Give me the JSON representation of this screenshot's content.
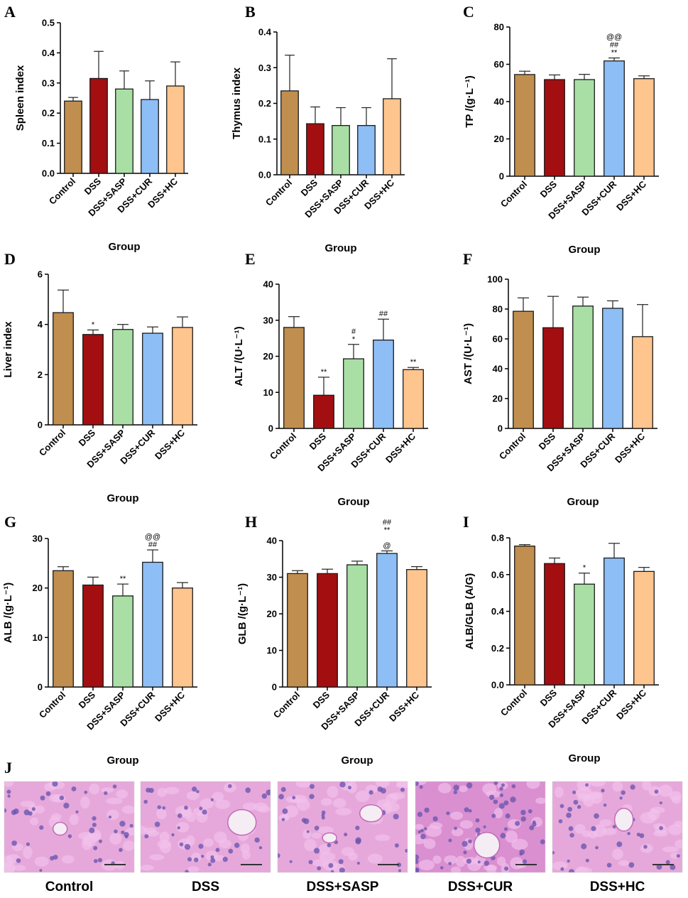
{
  "colors": {
    "Control": "#C08E4E",
    "DSS": "#A30E10",
    "DSS+SASP": "#A9DFA5",
    "DSS+CUR": "#8EBEF6",
    "DSS+HC": "#FFC58E",
    "tissue_bg": "#E6A8DA",
    "tissue_cell": "#F3C2EC",
    "nucleus": "#6B56B0",
    "vessel": "#F4EEF4"
  },
  "chart_data": [
    {
      "id": "A",
      "panel_label": "A",
      "type": "bar",
      "categories": [
        "Control",
        "DSS",
        "DSS+SASP",
        "DSS+CUR",
        "DSS+HC"
      ],
      "values": [
        0.24,
        0.315,
        0.28,
        0.245,
        0.29
      ],
      "errors": [
        0.012,
        0.09,
        0.06,
        0.062,
        0.08
      ],
      "significance": [
        "",
        "",
        "",
        "",
        ""
      ],
      "ylabel": "Spleen index",
      "xlabel": "Group",
      "ylim": [
        0,
        0.5
      ],
      "yticks": [
        "0.0",
        "0.1",
        "0.2",
        "0.3",
        "0.4",
        "0.5"
      ],
      "ytick_values": [
        0,
        0.1,
        0.2,
        0.3,
        0.4,
        0.5
      ]
    },
    {
      "id": "B",
      "panel_label": "B",
      "type": "bar",
      "categories": [
        "Control",
        "DSS",
        "DSS+SASP",
        "DSS+CUR",
        "DSS+HC"
      ],
      "values": [
        0.235,
        0.143,
        0.138,
        0.138,
        0.213
      ],
      "errors": [
        0.1,
        0.047,
        0.05,
        0.05,
        0.112
      ],
      "significance": [
        "",
        "",
        "",
        "",
        ""
      ],
      "ylabel": "Thymus index",
      "xlabel": "Group",
      "ylim": [
        0,
        0.4
      ],
      "yticks": [
        "0.0",
        "0.1",
        "0.2",
        "0.3",
        "0.4"
      ],
      "ytick_values": [
        0,
        0.1,
        0.2,
        0.3,
        0.4
      ]
    },
    {
      "id": "C",
      "panel_label": "C",
      "type": "bar",
      "categories": [
        "Control",
        "DSS",
        "DSS+SASP",
        "DSS+CUR",
        "DSS+HC"
      ],
      "values": [
        54.5,
        51.8,
        51.8,
        61.8,
        52.3
      ],
      "errors": [
        1.8,
        2.5,
        2.8,
        1.6,
        1.5
      ],
      "significance": [
        "",
        "",
        "",
        "@@\n##\n**",
        ""
      ],
      "ylabel": "TP /(g·L⁻¹)",
      "xlabel": "Group",
      "ylim": [
        0,
        80
      ],
      "yticks": [
        "0",
        "20",
        "40",
        "60",
        "80"
      ],
      "ytick_values": [
        0,
        20,
        40,
        60,
        80
      ]
    },
    {
      "id": "D",
      "panel_label": "D",
      "type": "bar",
      "categories": [
        "Control",
        "DSS",
        "DSS+SASP",
        "DSS+CUR",
        "DSS+HC"
      ],
      "values": [
        4.47,
        3.6,
        3.8,
        3.65,
        3.88
      ],
      "errors": [
        0.9,
        0.18,
        0.2,
        0.25,
        0.42
      ],
      "significance": [
        "",
        "*",
        "",
        "",
        ""
      ],
      "ylabel": "Liver index",
      "xlabel": "Group",
      "ylim": [
        0,
        6
      ],
      "yticks": [
        "0",
        "2",
        "4",
        "6"
      ],
      "ytick_values": [
        0,
        2,
        4,
        6
      ]
    },
    {
      "id": "E",
      "panel_label": "E",
      "type": "bar",
      "categories": [
        "Control",
        "DSS",
        "DSS+SASP",
        "DSS+CUR",
        "DSS+HC"
      ],
      "values": [
        28,
        9.2,
        19.3,
        24.5,
        16.3
      ],
      "errors": [
        3,
        5,
        4,
        5.8,
        0.6
      ],
      "significance": [
        "",
        "**",
        "#\n*",
        "##",
        "**"
      ],
      "ylabel": "ALT /(U·L⁻¹)",
      "xlabel": "Group",
      "ylim": [
        0,
        40
      ],
      "yticks": [
        "0",
        "10",
        "20",
        "30",
        "40"
      ],
      "ytick_values": [
        0,
        10,
        20,
        30,
        40
      ]
    },
    {
      "id": "F",
      "panel_label": "F",
      "type": "bar",
      "categories": [
        "Control",
        "DSS",
        "DSS+SASP",
        "DSS+CUR",
        "DSS+HC"
      ],
      "values": [
        78.5,
        67.5,
        82,
        80.5,
        61.5
      ],
      "errors": [
        9,
        21,
        6,
        5,
        21.5
      ],
      "significance": [
        "",
        "",
        "",
        "",
        ""
      ],
      "ylabel": "AST /(U·L⁻¹)",
      "xlabel": "Group",
      "ylim": [
        0,
        100
      ],
      "yticks": [
        "0",
        "20",
        "40",
        "60",
        "80",
        "100"
      ],
      "ytick_values": [
        0,
        20,
        40,
        60,
        80,
        100
      ]
    },
    {
      "id": "G",
      "panel_label": "G",
      "type": "bar",
      "categories": [
        "Control",
        "DSS",
        "DSS+SASP",
        "DSS+CUR",
        "DSS+HC"
      ],
      "values": [
        23.5,
        20.6,
        18.4,
        25.2,
        20
      ],
      "errors": [
        0.8,
        1.6,
        2.4,
        2.5,
        1.1
      ],
      "significance": [
        "",
        "",
        "**",
        "@@\n##",
        ""
      ],
      "ylabel": "ALB /(g·L⁻¹)",
      "xlabel": "Group",
      "ylim": [
        0,
        30
      ],
      "yticks": [
        "0",
        "10",
        "20",
        "30"
      ],
      "ytick_values": [
        0,
        10,
        20,
        30
      ]
    },
    {
      "id": "H",
      "panel_label": "H",
      "type": "bar",
      "categories": [
        "Control",
        "DSS",
        "DSS+SASP",
        "DSS+CUR",
        "DSS+HC"
      ],
      "values": [
        31,
        31,
        33.4,
        36.5,
        32.1
      ],
      "errors": [
        0.8,
        1.2,
        1,
        0.7,
        0.8
      ],
      "significance": [
        "",
        "",
        "",
        "##\n**\n\n@",
        ""
      ],
      "ylabel": "GLB /(g·L⁻¹)",
      "xlabel": "Group",
      "ylim": [
        0,
        40
      ],
      "yticks": [
        "0",
        "10",
        "20",
        "30",
        "40"
      ],
      "ytick_values": [
        0,
        10,
        20,
        30,
        40
      ]
    },
    {
      "id": "I",
      "panel_label": "I",
      "type": "bar",
      "categories": [
        "Control",
        "DSS",
        "DSS+SASP",
        "DSS+CUR",
        "DSS+HC"
      ],
      "values": [
        0.755,
        0.66,
        0.548,
        0.69,
        0.617
      ],
      "errors": [
        0.008,
        0.03,
        0.06,
        0.08,
        0.022
      ],
      "significance": [
        "",
        "",
        "*",
        "",
        ""
      ],
      "ylabel": "ALB/GLB (A/G)",
      "xlabel": "Group",
      "ylim": [
        0,
        0.8
      ],
      "yticks": [
        "0.0",
        "0.2",
        "0.4",
        "0.6",
        "0.8"
      ],
      "ytick_values": [
        0,
        0.2,
        0.4,
        0.6,
        0.8
      ]
    }
  ],
  "histology": {
    "panel_label": "J",
    "labels": [
      "Control",
      "DSS",
      "DSS+SASP",
      "DSS+CUR",
      "DSS+HC"
    ]
  }
}
